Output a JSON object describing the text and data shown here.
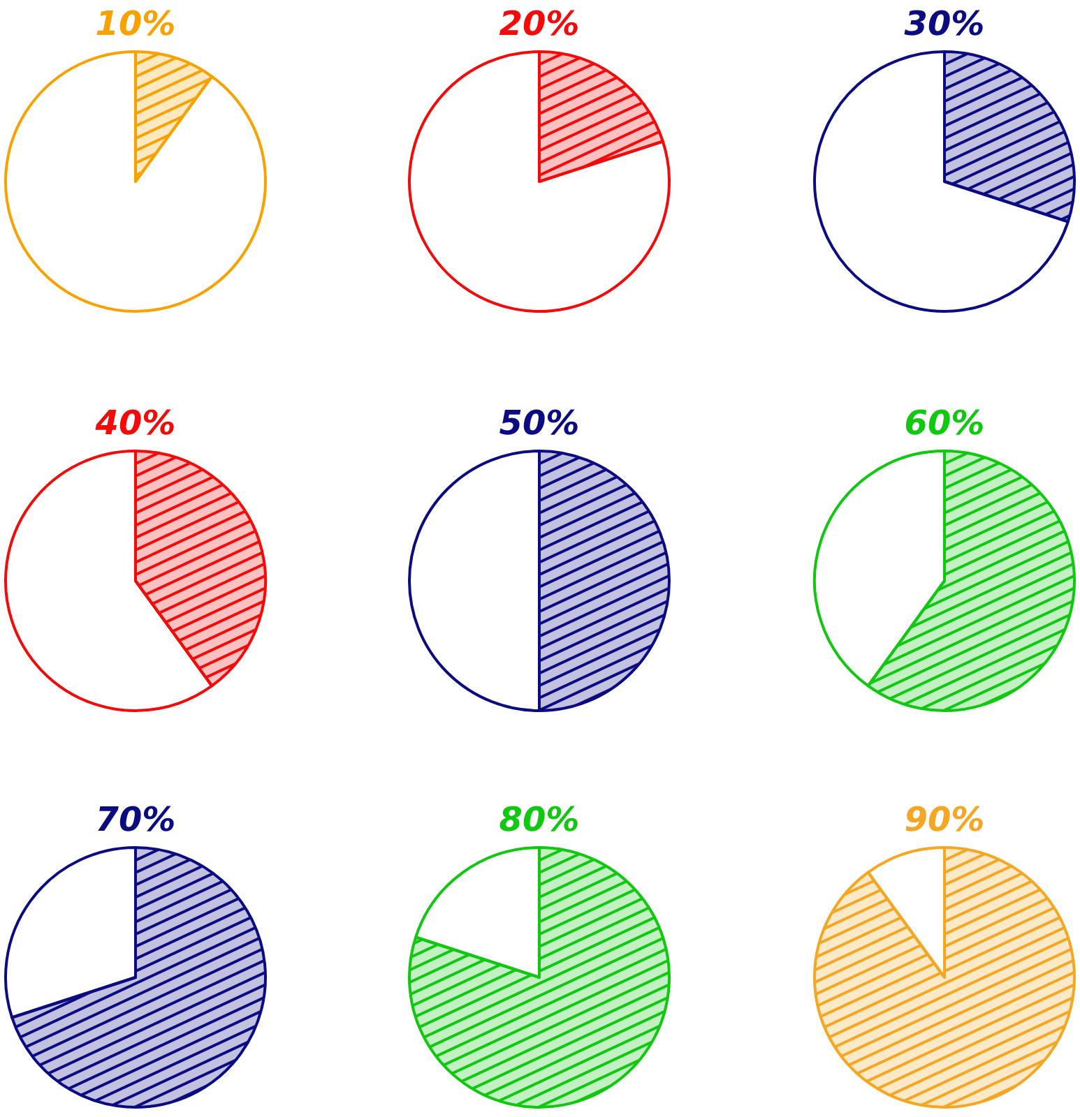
{
  "chart_data": [
    {
      "type": "pie",
      "title": "10%",
      "categories": [
        null,
        null
      ],
      "values": [
        10,
        90
      ],
      "colors": [
        "#f7a200",
        "#ffffff"
      ]
    },
    {
      "type": "pie",
      "title": "20%",
      "categories": [
        null,
        null
      ],
      "values": [
        20,
        80
      ],
      "colors": [
        "#f50a0a",
        "#ffffff"
      ]
    },
    {
      "type": "pie",
      "title": "30%",
      "categories": [
        null,
        null
      ],
      "values": [
        30,
        70
      ],
      "colors": [
        "#0c0c82",
        "#ffffff"
      ]
    },
    {
      "type": "pie",
      "title": "40%",
      "categories": [
        null,
        null
      ],
      "values": [
        40,
        60
      ],
      "colors": [
        "#f50a0a",
        "#ffffff"
      ]
    },
    {
      "type": "pie",
      "title": "50%",
      "categories": [
        null,
        null
      ],
      "values": [
        50,
        50
      ],
      "colors": [
        "#0c0c82",
        "#ffffff"
      ]
    },
    {
      "type": "pie",
      "title": "60%",
      "categories": [
        null,
        null
      ],
      "values": [
        60,
        40
      ],
      "colors": [
        "#10c810",
        "#ffffff"
      ]
    },
    {
      "type": "pie",
      "title": "70%",
      "categories": [
        null,
        null
      ],
      "values": [
        70,
        30
      ],
      "colors": [
        "#0c0c82",
        "#ffffff"
      ]
    },
    {
      "type": "pie",
      "title": "80%",
      "categories": [
        null,
        null
      ],
      "values": [
        80,
        20
      ],
      "colors": [
        "#10c810",
        "#ffffff"
      ]
    },
    {
      "type": "pie",
      "title": "90%",
      "categories": [
        null,
        null
      ],
      "values": [
        90,
        10
      ],
      "colors": [
        "#f5a623",
        "#ffffff"
      ]
    }
  ]
}
